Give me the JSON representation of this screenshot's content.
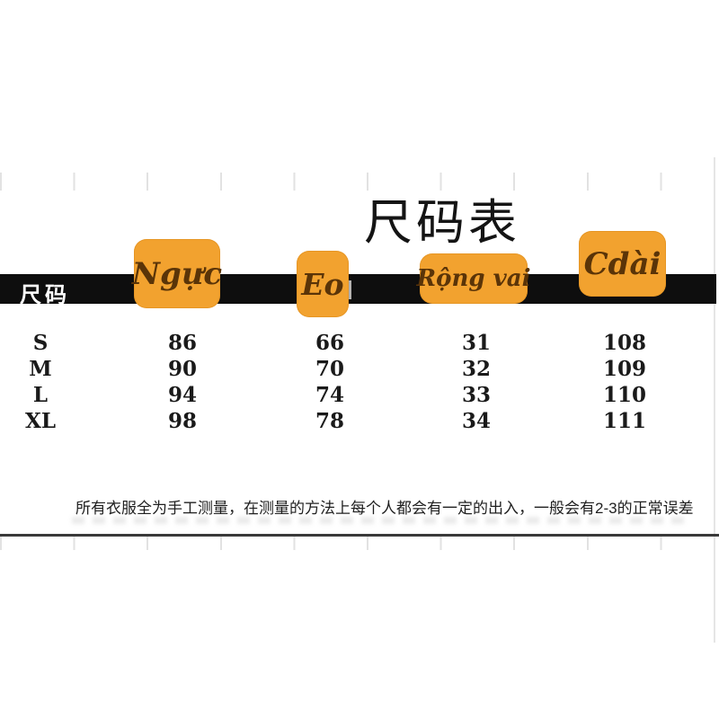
{
  "chart_data": {
    "type": "table",
    "title": "尺码表",
    "columns": [
      "尺码",
      "Ngực",
      "Eo",
      "Rộng vai",
      "Cdài"
    ],
    "rows": [
      [
        "S",
        86,
        66,
        31,
        108
      ],
      [
        "M",
        90,
        70,
        32,
        109
      ],
      [
        "L",
        94,
        74,
        33,
        110
      ],
      [
        "XL",
        98,
        78,
        34,
        111
      ]
    ],
    "footnote": "所有衣服全为手工测量，在测量的方法上每个人都会有一定的出入，一般会有2-3的正常误差",
    "layout_hints": {
      "header_style": "black band with orange rounded sticker badges",
      "grid": false
    }
  },
  "colors": {
    "badge_orange": "#F2A22F",
    "badge_text_brown": "#5A3408",
    "band_black": "#0E0E0E",
    "band_label_white": "#FFFFFF",
    "divider_gray": "#3A3A3A",
    "tick_gray": "#E2E2E2"
  }
}
